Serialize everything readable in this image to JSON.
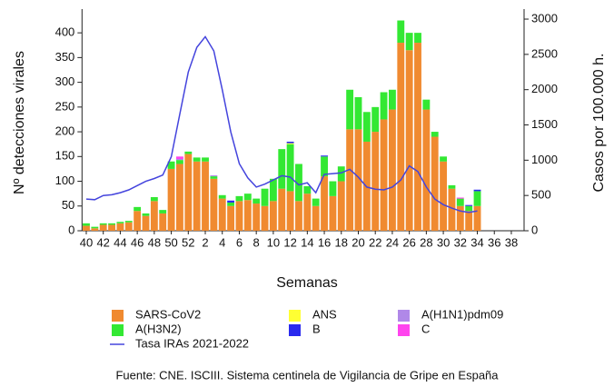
{
  "chart_data": {
    "type": "bar",
    "x_label": "Semanas",
    "y_label": "Nº detecciones virales",
    "y2_label": "Casos por 100.000 h.",
    "source": "Fuente: CNE. ISCIII. Sistema centinela de Vigilancia de Gripe en España",
    "categories": [
      "40",
      null,
      "42",
      null,
      "44",
      null,
      "46",
      null,
      "48",
      null,
      "50",
      null,
      "52",
      null,
      "2",
      null,
      "4",
      null,
      "6",
      null,
      "8",
      null,
      "10",
      null,
      "12",
      null,
      "14",
      null,
      "16",
      null,
      "18",
      null,
      "20",
      null,
      "22",
      null,
      "24",
      null,
      "26",
      null,
      "28",
      null,
      "30",
      null,
      "32",
      null,
      "34",
      null,
      "36",
      null,
      "38",
      null
    ],
    "ylim": [
      0,
      448
    ],
    "yticks": [
      0,
      50,
      100,
      150,
      200,
      250,
      300,
      350,
      400
    ],
    "y2lim": [
      0,
      3142
    ],
    "y2ticks": [
      0,
      500,
      1000,
      1500,
      2000,
      2500,
      3000
    ],
    "series": [
      {
        "name": "SARS-CoV2",
        "color": "#f08a30",
        "values": [
          10,
          5,
          12,
          12,
          15,
          17,
          40,
          30,
          60,
          35,
          125,
          135,
          155,
          140,
          140,
          105,
          65,
          50,
          60,
          62,
          55,
          50,
          60,
          85,
          80,
          60,
          75,
          50,
          110,
          70,
          100,
          205,
          205,
          180,
          200,
          225,
          245,
          380,
          365,
          380,
          245,
          190,
          140,
          85,
          50,
          40,
          50,
          null,
          null,
          null,
          null,
          null
        ]
      },
      {
        "name": "A(H3N2)",
        "color": "#33e833",
        "values": [
          5,
          3,
          3,
          3,
          3,
          3,
          8,
          5,
          8,
          7,
          15,
          8,
          5,
          8,
          8,
          5,
          7,
          7,
          10,
          13,
          10,
          35,
          45,
          80,
          95,
          75,
          15,
          15,
          40,
          30,
          30,
          80,
          65,
          60,
          50,
          55,
          40,
          45,
          35,
          20,
          20,
          10,
          10,
          7,
          15,
          10,
          30,
          null,
          null,
          null,
          null,
          null
        ]
      },
      {
        "name": "ANS",
        "color": "#ffff33",
        "values": [
          0,
          0,
          0,
          0,
          0,
          0,
          0,
          0,
          0,
          0,
          0,
          0,
          0,
          0,
          0,
          0,
          0,
          0,
          0,
          0,
          0,
          0,
          0,
          0,
          2,
          0,
          0,
          0,
          0,
          0,
          0,
          0,
          0,
          0,
          0,
          0,
          0,
          0,
          0,
          0,
          0,
          0,
          0,
          0,
          0,
          0,
          0,
          null,
          null,
          null,
          null,
          null
        ]
      },
      {
        "name": "B",
        "color": "#2a2aee",
        "values": [
          0,
          0,
          0,
          0,
          0,
          0,
          0,
          0,
          0,
          0,
          0,
          0,
          0,
          0,
          0,
          0,
          0,
          4,
          0,
          0,
          0,
          0,
          0,
          0,
          3,
          0,
          0,
          0,
          2,
          0,
          0,
          0,
          0,
          0,
          0,
          0,
          0,
          0,
          0,
          0,
          0,
          0,
          0,
          0,
          0,
          2,
          3,
          null,
          null,
          null,
          null,
          null
        ]
      },
      {
        "name": "A(H1N1)pdm09",
        "color": "#b088e8",
        "values": [
          0,
          0,
          0,
          0,
          0,
          0,
          0,
          0,
          0,
          0,
          0,
          2,
          0,
          0,
          0,
          2,
          0,
          0,
          0,
          0,
          0,
          0,
          0,
          0,
          0,
          0,
          0,
          0,
          0,
          0,
          0,
          0,
          0,
          0,
          0,
          0,
          0,
          0,
          0,
          0,
          0,
          0,
          0,
          0,
          0,
          0,
          0,
          null,
          null,
          null,
          null,
          null
        ]
      },
      {
        "name": "C",
        "color": "#ff44ee",
        "values": [
          0,
          0,
          0,
          0,
          0,
          0,
          0,
          0,
          0,
          0,
          0,
          5,
          0,
          0,
          0,
          0,
          0,
          0,
          0,
          0,
          0,
          0,
          0,
          0,
          0,
          0,
          0,
          0,
          0,
          0,
          0,
          0,
          0,
          0,
          0,
          0,
          0,
          0,
          0,
          0,
          0,
          0,
          0,
          0,
          2,
          0,
          0,
          null,
          null,
          null,
          null,
          null
        ]
      },
      {
        "name": "Tasa IRAs 2021-2022",
        "color": "#4444dd",
        "type": "line",
        "axis": "y2",
        "values": [
          450,
          440,
          500,
          510,
          540,
          580,
          640,
          700,
          740,
          790,
          1050,
          1650,
          2250,
          2600,
          2750,
          2550,
          2000,
          1400,
          950,
          750,
          620,
          660,
          720,
          780,
          760,
          650,
          680,
          540,
          800,
          810,
          820,
          870,
          760,
          620,
          590,
          580,
          620,
          720,
          920,
          840,
          620,
          450,
          370,
          320,
          280,
          260,
          280,
          null,
          null,
          null,
          null,
          null
        ]
      }
    ]
  }
}
